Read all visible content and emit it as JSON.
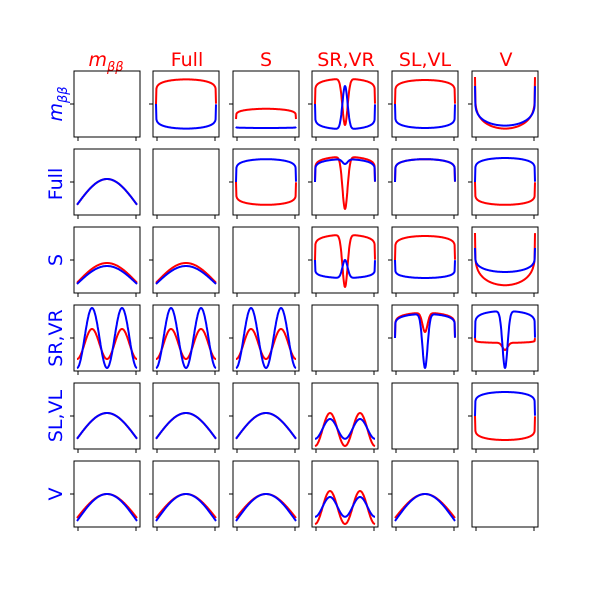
{
  "chart_data": {
    "type": "line",
    "layout": "6x6 matrix of small line panels",
    "colors": {
      "red_series": "#ff0000",
      "blue_series": "#0000ff",
      "column_titles": "#ff0000",
      "row_titles": "#0000ff"
    },
    "column_titles": [
      "m_ββ",
      "Full",
      "S",
      "SR,VR",
      "SL,VL",
      "V"
    ],
    "row_titles": [
      "m_ββ",
      "Full",
      "S",
      "SR,VR",
      "SL,VL",
      "V"
    ],
    "ticks": "x ticks at both panel edges on bottom row, y tick at panel middle on first column and at mid-left on rotated panels; no tick labels",
    "grid": false,
    "legend": "none",
    "panel_ylim": [
      0,
      1
    ],
    "panels": [
      {
        "row": 0,
        "col": 0,
        "empty": true
      },
      {
        "row": 0,
        "col": 1,
        "shape": "loop",
        "red": [
          0.91,
          0.92
        ],
        "blue": [
          0.09,
          0.1
        ]
      },
      {
        "row": 0,
        "col": 2,
        "shape": "u-edge",
        "red": [
          0.42,
          0.25
        ],
        "blue": [
          0.1,
          0.12
        ]
      },
      {
        "row": 0,
        "col": 3,
        "shape": "dip-loop",
        "red": [
          0.92,
          0.15
        ],
        "blue": [
          0.08,
          0.8
        ]
      },
      {
        "row": 0,
        "col": 4,
        "shape": "loop",
        "red": [
          0.9,
          0.9
        ],
        "blue": [
          0.1,
          0.11
        ]
      },
      {
        "row": 0,
        "col": 5,
        "shape": "u-edge",
        "red": [
          0.09,
          0.95
        ],
        "blue": [
          0.14,
          0.8
        ]
      },
      {
        "row": 1,
        "col": 0,
        "shape": "bump",
        "red": [
          0.12,
          0.55
        ],
        "blue": [
          0.12,
          0.55
        ]
      },
      {
        "row": 1,
        "col": 1,
        "empty": true
      },
      {
        "row": 1,
        "col": 2,
        "shape": "loop",
        "red": [
          0.12,
          0.9
        ],
        "blue": [
          0.88,
          0.9
        ]
      },
      {
        "row": 1,
        "col": 3,
        "shape": "dip-loop",
        "red": [
          0.92,
          0.05
        ],
        "blue": [
          0.88,
          0.8
        ]
      },
      {
        "row": 1,
        "col": 4,
        "shape": "loop",
        "red": [
          0.88,
          0.8
        ],
        "blue": [
          0.88,
          0.8
        ]
      },
      {
        "row": 1,
        "col": 5,
        "shape": "loop",
        "red": [
          0.12,
          0.05
        ],
        "blue": [
          0.9,
          0.9
        ]
      },
      {
        "row": 2,
        "col": 0,
        "shape": "bump",
        "red": [
          0.12,
          0.45
        ],
        "blue": [
          0.1,
          0.4
        ]
      },
      {
        "row": 2,
        "col": 1,
        "shape": "bump",
        "red": [
          0.12,
          0.45
        ],
        "blue": [
          0.1,
          0.4
        ]
      },
      {
        "row": 2,
        "col": 2,
        "empty": true
      },
      {
        "row": 2,
        "col": 3,
        "shape": "dip-loop",
        "red": [
          0.92,
          0.05
        ],
        "blue": [
          0.2,
          0.5
        ]
      },
      {
        "row": 2,
        "col": 4,
        "shape": "loop",
        "red": [
          0.9,
          0.9
        ],
        "blue": [
          0.2,
          0.2
        ]
      },
      {
        "row": 2,
        "col": 5,
        "shape": "u-edge",
        "red": [
          0.08,
          0.95
        ],
        "blue": [
          0.3,
          0.7
        ]
      },
      {
        "row": 3,
        "col": 0,
        "shape": "wave",
        "red": [
          0.15,
          0.65
        ],
        "blue": [
          0.0,
          1.0
        ]
      },
      {
        "row": 3,
        "col": 1,
        "shape": "wave",
        "red": [
          0.15,
          0.65
        ],
        "blue": [
          0.0,
          1.0
        ]
      },
      {
        "row": 3,
        "col": 2,
        "shape": "wave",
        "red": [
          0.15,
          0.65
        ],
        "blue": [
          0.0,
          1.0
        ]
      },
      {
        "row": 3,
        "col": 3,
        "empty": true
      },
      {
        "row": 3,
        "col": 4,
        "shape": "dip-loop",
        "red": [
          0.92,
          0.6
        ],
        "blue": [
          0.9,
          0.0
        ]
      },
      {
        "row": 3,
        "col": 5,
        "shape": "dip-loop",
        "red": [
          0.42,
          0.3
        ],
        "blue": [
          0.95,
          0.0
        ]
      },
      {
        "row": 4,
        "col": 0,
        "shape": "bump",
        "red": [
          0.12,
          0.55
        ],
        "blue": [
          0.12,
          0.55
        ]
      },
      {
        "row": 4,
        "col": 1,
        "shape": "bump",
        "red": [
          0.12,
          0.55
        ],
        "blue": [
          0.12,
          0.55
        ]
      },
      {
        "row": 4,
        "col": 2,
        "shape": "bump",
        "red": [
          0.12,
          0.55
        ],
        "blue": [
          0.12,
          0.55
        ]
      },
      {
        "row": 4,
        "col": 3,
        "shape": "wave",
        "red": [
          0.0,
          0.55
        ],
        "blue": [
          0.12,
          0.45
        ]
      },
      {
        "row": 4,
        "col": 4,
        "empty": true
      },
      {
        "row": 4,
        "col": 5,
        "shape": "loop",
        "red": [
          0.1,
          0.08
        ],
        "blue": [
          0.9,
          0.85
        ]
      },
      {
        "row": 5,
        "col": 0,
        "shape": "bump",
        "red": [
          0.1,
          0.5
        ],
        "blue": [
          0.05,
          0.5
        ]
      },
      {
        "row": 5,
        "col": 1,
        "shape": "bump",
        "red": [
          0.1,
          0.5
        ],
        "blue": [
          0.05,
          0.5
        ]
      },
      {
        "row": 5,
        "col": 2,
        "shape": "bump",
        "red": [
          0.1,
          0.5
        ],
        "blue": [
          0.05,
          0.5
        ]
      },
      {
        "row": 5,
        "col": 3,
        "shape": "wave",
        "red": [
          0.0,
          0.55
        ],
        "blue": [
          0.12,
          0.45
        ]
      },
      {
        "row": 5,
        "col": 4,
        "shape": "bump",
        "red": [
          0.1,
          0.5
        ],
        "blue": [
          0.05,
          0.5
        ]
      },
      {
        "row": 5,
        "col": 5,
        "empty": true
      }
    ]
  }
}
